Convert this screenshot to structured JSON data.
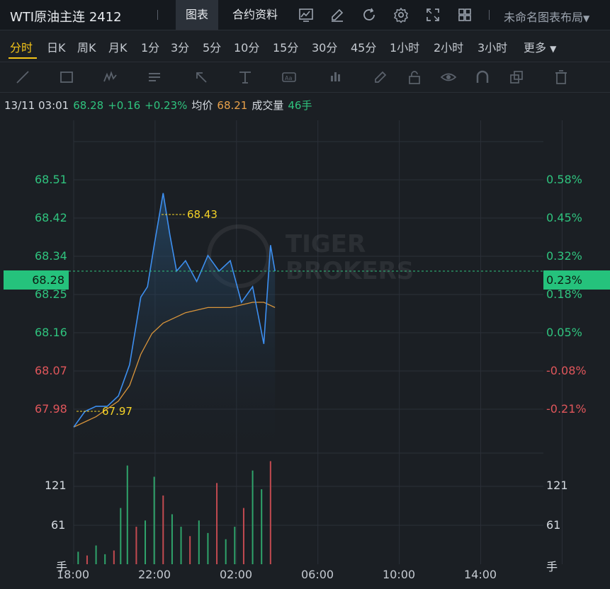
{
  "app": {
    "title": "WTI原油主连 2412",
    "tabs": [
      "图表",
      "合约资料"
    ],
    "active_tab": "图表",
    "layout_label": "未命名图表布局",
    "top_icons": [
      "chart-indicator-icon",
      "draw-icon",
      "refresh-icon",
      "settings-icon",
      "fullscreen-icon",
      "grid-layout-icon"
    ]
  },
  "periods": [
    "分时",
    "日K",
    "周K",
    "月K",
    "1分",
    "3分",
    "5分",
    "10分",
    "15分",
    "30分",
    "45分",
    "1小时",
    "2小时",
    "3小时",
    "更多"
  ],
  "active_period": "分时",
  "drawing_tools": [
    "line-tool-icon",
    "rectangle-tool-icon",
    "wave-tool-icon",
    "text-list-tool-icon",
    "arrow-tool-icon",
    "price-range-tool-icon",
    "text-label-tool-icon",
    "measure-tool-icon",
    "pencil-icon",
    "lock-icon",
    "eye-icon",
    "magnet-icon",
    "layers-icon",
    "trash-icon"
  ],
  "info": {
    "time": "13/11 03:01",
    "price": "68.28",
    "change": "+0.16",
    "change_pct": "+0.23%",
    "avg_label": "均价",
    "avg_value": "68.21",
    "volume_label": "成交量",
    "volume_value": "46手"
  },
  "watermark": {
    "line1": "TIGER",
    "line2": "BROKERS"
  },
  "colors": {
    "up": "#2fc37e",
    "down": "#e0565b",
    "price_line": "#3d8ff0",
    "avg_line": "#d9953b",
    "accent": "#f5c518"
  },
  "chart_data": {
    "type": "line",
    "y_left_ticks": [
      "68.51",
      "68.42",
      "68.34",
      "68.25",
      "68.16",
      "68.07",
      "67.98"
    ],
    "y_right_ticks": [
      "0.58%",
      "0.45%",
      "0.32%",
      "0.18%",
      "0.05%",
      "-0.08%",
      "-0.21%"
    ],
    "current_price": "68.28",
    "current_pct": "0.23%",
    "x_ticks": [
      "18:00",
      "22:00",
      "02:00",
      "06:00",
      "10:00",
      "14:00"
    ],
    "high_label": "68.43",
    "low_label": "67.97",
    "volume_ticks_left": [
      "121",
      "61",
      "手"
    ],
    "volume_ticks_right": [
      "121",
      "61",
      "手"
    ],
    "series": [
      {
        "name": "价格",
        "x": [
          18.0,
          18.5,
          19.0,
          19.5,
          20.0,
          20.5,
          21.0,
          21.3,
          21.6,
          22.0,
          22.3,
          22.6,
          23.0,
          23.5,
          24.0,
          24.5,
          25.0,
          25.5,
          26.0,
          26.5,
          26.8,
          27.0
        ],
        "values": [
          67.98,
          68.01,
          68.02,
          68.02,
          68.04,
          68.1,
          68.23,
          68.25,
          68.33,
          68.43,
          68.35,
          68.28,
          68.3,
          68.26,
          68.31,
          68.28,
          68.3,
          68.22,
          68.25,
          68.14,
          68.33,
          68.28
        ]
      },
      {
        "name": "均价",
        "x": [
          18.0,
          19.0,
          20.0,
          20.5,
          21.0,
          21.5,
          22.0,
          23.0,
          24.0,
          25.0,
          26.0,
          26.5,
          27.0
        ],
        "values": [
          67.98,
          68.0,
          68.03,
          68.06,
          68.12,
          68.16,
          68.18,
          68.2,
          68.21,
          68.21,
          68.22,
          68.22,
          68.21
        ]
      }
    ],
    "volume_series": {
      "x": [
        18.2,
        18.6,
        19.0,
        19.4,
        19.8,
        20.1,
        20.4,
        20.8,
        21.2,
        21.6,
        22.0,
        22.4,
        22.8,
        23.2,
        23.6,
        24.0,
        24.4,
        24.8,
        25.2,
        25.6,
        26.0,
        26.4,
        26.8
      ],
      "values": [
        20,
        14,
        30,
        16,
        22,
        90,
        158,
        60,
        70,
        140,
        110,
        80,
        60,
        45,
        70,
        50,
        130,
        40,
        60,
        90,
        150,
        120,
        165
      ]
    },
    "x_range": [
      18,
      39
    ],
    "y_range": [
      67.93,
      68.57
    ]
  }
}
